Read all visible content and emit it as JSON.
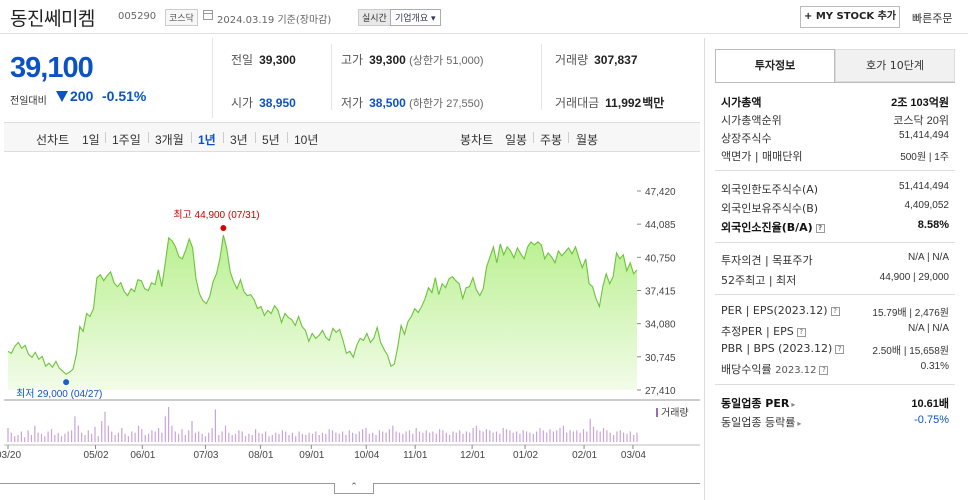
{
  "header": {
    "name": "동진쎄미켐",
    "code": "005290",
    "market": "코스닥",
    "date": "2024.03.19",
    "basis": "기준(장마감)",
    "realtime": "실시간",
    "company_overview": "기업개요 ▾",
    "mystock": "+ MY STOCK 추가",
    "quick_order": "빠른주문"
  },
  "price": {
    "current": "39,100",
    "change_label": "전일대비",
    "change": "200",
    "change_pct": "-0.51%"
  },
  "quote": {
    "prev_close_label": "전일",
    "prev_close": "39,300",
    "high_label": "고가",
    "high": "39,300",
    "upper_limit": "(상한가 51,000)",
    "volume_label": "거래량",
    "volume": "307,837",
    "open_label": "시가",
    "open": "38,950",
    "low_label": "저가",
    "low": "38,500",
    "lower_limit": "(하한가 27,550)",
    "amount_label": "거래대금",
    "amount": "11,992",
    "amount_unit": "백만"
  },
  "tabs": {
    "line_chart": "선차트",
    "periods": [
      "1일",
      "1주일",
      "3개월",
      "1년",
      "3년",
      "5년",
      "10년"
    ],
    "active": "1년",
    "candle_chart": "봉차트",
    "candles": [
      "일봉",
      "주봉",
      "월봉"
    ]
  },
  "chart_data": {
    "type": "area",
    "y_ticks": [
      "47,420",
      "44,085",
      "40,750",
      "37,415",
      "34,080",
      "30,745",
      "27,410"
    ],
    "ylim": [
      27410,
      47420
    ],
    "x_ticks": [
      "03/20",
      "05/02",
      "06/01",
      "07/03",
      "08/01",
      "09/01",
      "10/04",
      "11/01",
      "12/01",
      "01/02",
      "02/01",
      "03/04"
    ],
    "high_annotation": "최고 44,900 (07/31)",
    "low_annotation": "최저 29,000 (04/27)",
    "volume_label": "거래량",
    "series": [
      {
        "values": [
          31300,
          31100,
          31800,
          32200,
          31600,
          31900,
          31000,
          30700,
          31200,
          30500,
          30800,
          29800,
          30100,
          29700,
          30300,
          29600,
          29300,
          29000,
          29200,
          29500,
          31000,
          33800,
          33300,
          35100,
          34800,
          35600,
          38700,
          39000,
          38400,
          38900,
          39300,
          38200,
          37800,
          38200,
          37300,
          36900,
          37600,
          37300,
          38500,
          38400,
          37600,
          37400,
          38200,
          38000,
          39500,
          37800,
          40200,
          42700,
          42400,
          41800,
          40800,
          40600,
          41500,
          42600,
          41700,
          38600,
          37100,
          36400,
          36100,
          36800,
          38300,
          39100,
          40600,
          43000,
          41600,
          39300,
          38300,
          37600,
          38500,
          37300,
          36900,
          37000,
          36500,
          35600,
          35800,
          34900,
          35400,
          35100,
          35900,
          35400,
          34200,
          35100,
          34700,
          34500,
          33900,
          34800,
          33800,
          33400,
          32300,
          33100,
          32600,
          32900,
          33400,
          32700,
          32400,
          33600,
          33200,
          33500,
          32400,
          31100,
          31300,
          30700,
          31900,
          32600,
          32400,
          33100,
          32200,
          32600,
          33700,
          32200,
          31500,
          30900,
          29800,
          30000,
          31700,
          33900,
          33000,
          34300,
          34800,
          35600,
          35200,
          35800,
          36600,
          37700,
          37200,
          38700,
          37000,
          38100,
          37700,
          38600,
          38800,
          38400,
          38100,
          36600,
          37700,
          37800,
          38700,
          37500,
          36900,
          37600,
          39800,
          40800,
          41800,
          40200,
          42100,
          41000,
          41800,
          41400,
          40700,
          41700,
          41100,
          40600,
          41800,
          42300,
          42000,
          42300,
          42000,
          40600,
          41200,
          40800,
          40200,
          41400,
          40900,
          41300,
          41700,
          41100,
          41800,
          40700,
          39700,
          40600,
          38100,
          37800,
          36600,
          35800,
          37800,
          39100,
          38100,
          38800,
          41200,
          40600,
          41000,
          39400,
          40200,
          39100,
          39500
        ]
      }
    ],
    "volume_series": [
      12,
      8,
      5,
      6,
      9,
      4,
      10,
      6,
      14,
      8,
      7,
      5,
      9,
      11,
      6,
      8,
      5,
      7,
      9,
      10,
      22,
      14,
      8,
      6,
      10,
      7,
      13,
      5,
      18,
      26,
      14,
      9,
      6,
      8,
      12,
      7,
      5,
      9,
      8,
      14,
      11,
      6,
      7,
      10,
      9,
      12,
      8,
      22,
      30,
      14,
      9,
      7,
      11,
      6,
      10,
      18,
      8,
      9,
      7,
      5,
      8,
      12,
      28,
      6,
      9,
      14,
      8,
      6,
      7,
      10,
      9,
      5,
      7,
      6,
      11,
      8,
      7,
      9,
      5,
      6,
      8,
      7,
      10,
      9,
      6,
      8,
      5,
      9,
      7,
      6,
      8,
      7,
      9,
      6,
      8,
      7,
      11,
      10,
      8,
      7,
      9,
      6,
      10,
      8,
      7,
      9,
      11,
      12,
      7,
      8,
      6,
      10,
      9,
      8,
      11,
      14,
      9,
      8,
      7,
      9,
      10,
      7,
      12,
      9,
      8,
      10,
      8,
      9,
      7,
      11,
      10,
      8,
      6,
      9,
      8,
      10,
      7,
      9,
      8,
      12,
      14,
      10,
      9,
      11,
      10,
      8,
      9,
      7,
      12,
      11,
      10,
      8,
      9,
      7,
      10,
      9,
      8,
      7,
      9,
      12,
      10,
      8,
      11,
      9,
      10,
      12,
      14,
      8,
      10,
      9,
      10,
      8,
      11,
      9,
      20,
      13,
      10,
      9,
      12,
      10,
      8,
      6,
      9,
      10,
      8,
      7,
      9,
      6,
      8
    ],
    "xlabel": "",
    "ylabel": ""
  },
  "right_panel": {
    "tab_active": "투자정보",
    "tab_inactive": "호가 10단계",
    "market_cap_label": "시가총액",
    "market_cap": "2조 103억원",
    "market_cap_rank_label": "시가총액순위",
    "market_cap_rank": "코스닥 20위",
    "shares_label": "상장주식수",
    "shares": "51,414,494",
    "par_label": "액면가 | 매매단위",
    "par": "500원 | 1주",
    "foreign_limit_label": "외국인한도주식수(A)",
    "foreign_limit": "51,414,494",
    "foreign_hold_label": "외국인보유주식수(B)",
    "foreign_hold": "4,409,052",
    "foreign_ratio_label": "외국인소진율(B/A)",
    "foreign_ratio": "8.58%",
    "opinion_label": "투자의견 | 목표주가",
    "opinion": "N/A | N/A",
    "w52_label": "52주최고 | 최저",
    "w52": "44,900 | 29,000",
    "per_label": "PER | EPS(2023.12)",
    "per": "15.79배 | 2,476원",
    "est_per_label": "추정PER | EPS",
    "est_per": "N/A | N/A",
    "pbr_label": "PBR | BPS (2023.12)",
    "pbr": "2.50배 | 15,658원",
    "div_label": "배당수익률",
    "div_date": "2023.12",
    "div": "0.31%",
    "sector_per_label": "동일업종 PER",
    "sector_per": "10.61배",
    "sector_chg_label": "동일업종 등락률",
    "sector_chg": "-0.75%"
  }
}
